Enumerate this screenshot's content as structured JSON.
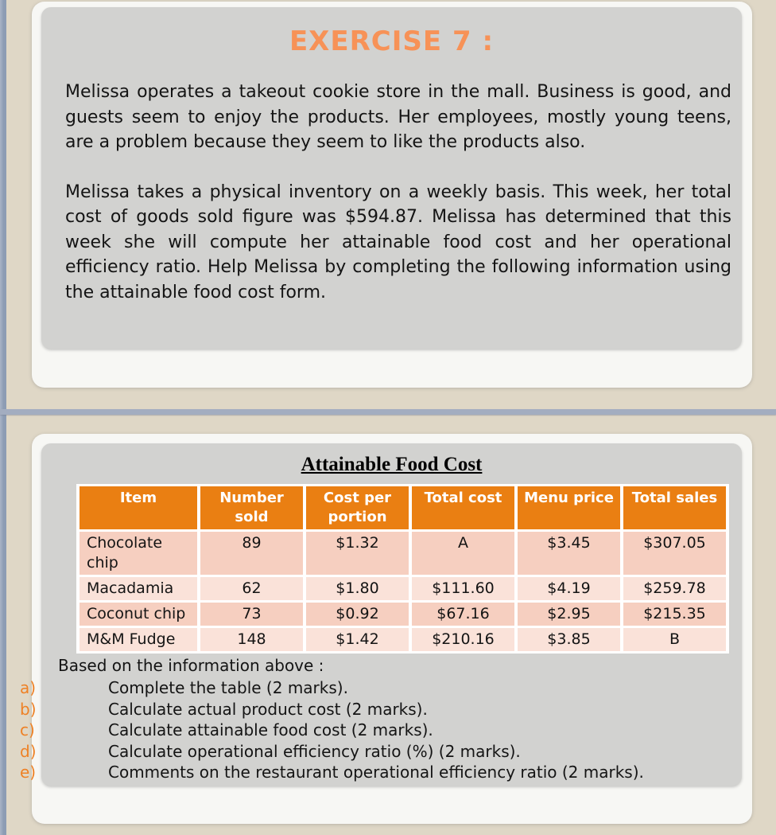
{
  "colors": {
    "page_background": "#dfd7c6",
    "side_strip_blue": "#8d9cb4",
    "divider_blue": "#a3adc0",
    "card_white": "#f7f7f4",
    "panel_gray": "#d2d2d0",
    "exercise_title_orange": "#f79257",
    "table_header_orange": "#ea7f12",
    "question_label_orange": "#ee8125",
    "table_row_pink_dark": "#f6cfc0",
    "table_row_pink_light": "#fae2d9"
  },
  "exercise": {
    "title": "EXERCISE 7 :",
    "paragraph1": "Melissa operates a takeout cookie store in the mall. Business is good, and guests seem to enjoy the products. Her employees, mostly young teens, are a problem because they seem to like the products also.",
    "paragraph2": "Melissa takes a physical inventory on a weekly basis. This week, her total cost of goods sold figure was $594.87. Melissa has determined that this week she will compute her attainable food cost and her operational efficiency ratio. Help Melissa by completing the following information using the attainable food cost form."
  },
  "worksheet": {
    "table_title": "Attainable Food Cost",
    "table": {
      "headers": [
        "Item",
        "Number\nsold",
        "Cost per\nportion",
        "Total cost",
        "Menu price",
        "Total sales"
      ],
      "rows": [
        [
          "Chocolate chip",
          "89",
          "$1.32",
          "A",
          "$3.45",
          "$307.05"
        ],
        [
          "Macadamia",
          "62",
          "$1.80",
          "$111.60",
          "$4.19",
          "$259.78"
        ],
        [
          "Coconut chip",
          "73",
          "$0.92",
          "$67.16",
          "$2.95",
          "$215.35"
        ],
        [
          "M&M Fudge",
          "148",
          "$1.42",
          "$210.16",
          "$3.85",
          "B"
        ]
      ]
    },
    "based_text": "Based on the information above :",
    "questions": [
      {
        "label": "a)",
        "text": "Complete the table (2 marks)."
      },
      {
        "label": "b)",
        "text": "Calculate actual product cost (2 marks)."
      },
      {
        "label": "c)",
        "text": "Calculate attainable food cost (2 marks)."
      },
      {
        "label": "d)",
        "text": "Calculate operational efficiency ratio (%) (2 marks)."
      },
      {
        "label": "e)",
        "text": "Comments on the restaurant operational efficiency ratio (2 marks)."
      }
    ]
  }
}
